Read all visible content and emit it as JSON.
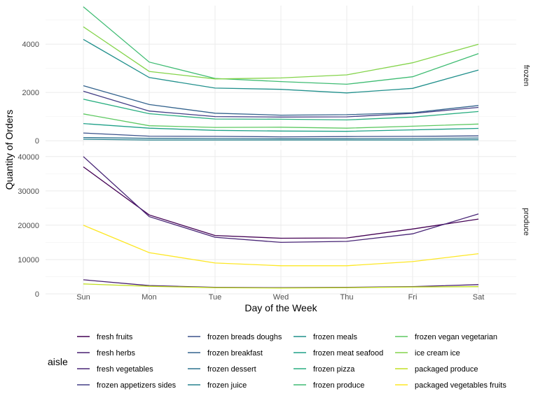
{
  "chart_data": {
    "type": "line",
    "xlabel": "Day of the Week",
    "ylabel": "Quantity of Orders",
    "categories": [
      "Sun",
      "Mon",
      "Tue",
      "Wed",
      "Thu",
      "Fri",
      "Sat"
    ],
    "legend": {
      "title": "aisle",
      "position": "bottom"
    },
    "grid": true,
    "panels": [
      {
        "label": "frozen",
        "ylim": [
          -200,
          5600
        ],
        "yticks": [
          0,
          2000,
          4000
        ],
        "yticklabels": [
          "0",
          "2000",
          "4000"
        ],
        "series": [
          {
            "name": "frozen appetizers sides",
            "color": "#433E85",
            "values": [
              2050,
              1230,
              1000,
              980,
              990,
              1130,
              1380
            ]
          },
          {
            "name": "frozen breads doughs",
            "color": "#3B528B",
            "values": [
              320,
              190,
              180,
              160,
              170,
              180,
              200
            ]
          },
          {
            "name": "frozen breakfast",
            "color": "#33638D",
            "values": [
              2280,
              1500,
              1140,
              1060,
              1080,
              1160,
              1460
            ]
          },
          {
            "name": "frozen dessert",
            "color": "#2C728E",
            "values": [
              130,
              100,
              90,
              80,
              80,
              90,
              110
            ]
          },
          {
            "name": "frozen juice",
            "color": "#26828E",
            "values": [
              60,
              30,
              30,
              30,
              30,
              30,
              40
            ]
          },
          {
            "name": "frozen meals",
            "color": "#21908C",
            "values": [
              4200,
              2620,
              2180,
              2130,
              1980,
              2170,
              2930
            ]
          },
          {
            "name": "frozen meat seafood",
            "color": "#1FA088",
            "values": [
              710,
              520,
              430,
              400,
              390,
              450,
              510
            ]
          },
          {
            "name": "frozen pizza",
            "color": "#28AE80",
            "values": [
              1720,
              1120,
              900,
              890,
              860,
              980,
              1210
            ]
          },
          {
            "name": "frozen produce",
            "color": "#3FBC73",
            "values": [
              5550,
              3260,
              2580,
              2450,
              2340,
              2650,
              3610
            ]
          },
          {
            "name": "frozen vegan vegetarian",
            "color": "#5EC962",
            "values": [
              1110,
              620,
              550,
              560,
              520,
              600,
              690
            ]
          },
          {
            "name": "ice cream ice",
            "color": "#84D44B",
            "values": [
              4720,
              2870,
              2560,
              2600,
              2730,
              3230,
              4000
            ]
          }
        ]
      },
      {
        "label": "produce",
        "ylim": [
          0,
          42000
        ],
        "yticks": [
          0,
          10000,
          20000,
          30000,
          40000
        ],
        "yticklabels": [
          "0",
          "10000",
          "20000",
          "30000",
          "40000"
        ],
        "series": [
          {
            "name": "fresh fruits",
            "color": "#440154",
            "values": [
              37000,
              23000,
              17000,
              16200,
              16300,
              18900,
              21800
            ]
          },
          {
            "name": "fresh herbs",
            "color": "#481F70",
            "values": [
              4100,
              2400,
              1900,
              1800,
              1900,
              2100,
              2700
            ]
          },
          {
            "name": "fresh vegetables",
            "color": "#482576",
            "values": [
              40000,
              22500,
              16500,
              15000,
              15300,
              17500,
              23300
            ]
          },
          {
            "name": "packaged produce",
            "color": "#C2DF23",
            "values": [
              2900,
              2200,
              1800,
              1700,
              1800,
              2000,
              2100
            ]
          },
          {
            "name": "packaged vegetables fruits",
            "color": "#FDE725",
            "values": [
              20000,
              12000,
              9000,
              8200,
              8200,
              9400,
              11700
            ]
          }
        ]
      }
    ],
    "legend_entries": [
      {
        "name": "fresh fruits",
        "color": "#440154"
      },
      {
        "name": "fresh herbs",
        "color": "#481F70"
      },
      {
        "name": "fresh vegetables",
        "color": "#482576"
      },
      {
        "name": "frozen appetizers sides",
        "color": "#433E85"
      },
      {
        "name": "frozen breads doughs",
        "color": "#3B528B"
      },
      {
        "name": "frozen breakfast",
        "color": "#33638D"
      },
      {
        "name": "frozen dessert",
        "color": "#2C728E"
      },
      {
        "name": "frozen juice",
        "color": "#26828E"
      },
      {
        "name": "frozen meals",
        "color": "#21908C"
      },
      {
        "name": "frozen meat seafood",
        "color": "#1FA088"
      },
      {
        "name": "frozen pizza",
        "color": "#28AE80"
      },
      {
        "name": "frozen produce",
        "color": "#3FBC73"
      },
      {
        "name": "frozen vegan vegetarian",
        "color": "#5EC962"
      },
      {
        "name": "ice cream ice",
        "color": "#84D44B"
      },
      {
        "name": "packaged produce",
        "color": "#C2DF23"
      },
      {
        "name": "packaged vegetables fruits",
        "color": "#FDE725"
      }
    ]
  }
}
